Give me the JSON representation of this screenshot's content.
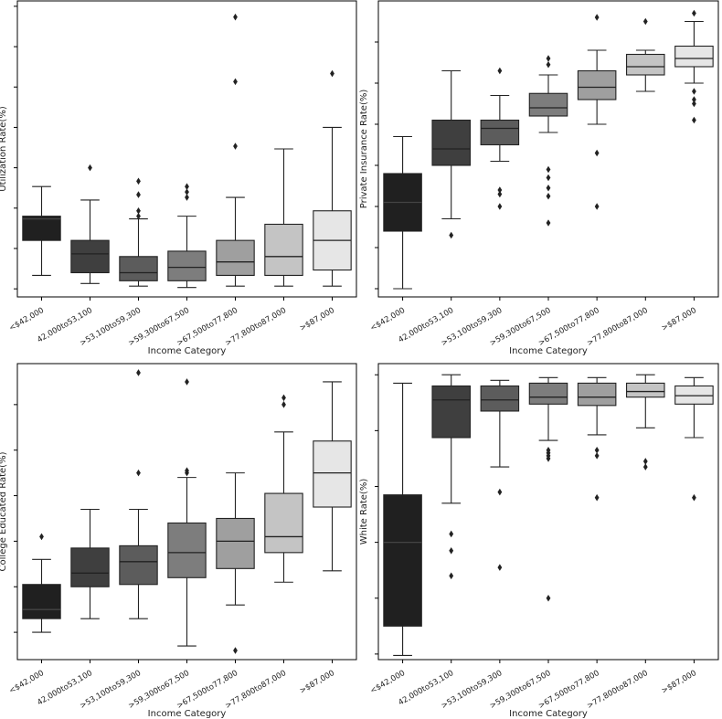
{
  "chart_data": [
    {
      "type": "box",
      "ylabel": "Utilization Rate(%)",
      "xlabel": "Income Category",
      "categories": [
        "<$42,000",
        "42,000to53,100",
        ">53,100to59,300",
        ">59,300to67,500",
        ">67,500to77,800",
        ">77,800to87,000",
        ">$87,000"
      ],
      "ylim": [
        -0.3,
        10.7
      ],
      "yticks": [
        0,
        1.5,
        3,
        4.5,
        6,
        7.5,
        9,
        10.5
      ],
      "tick_labels_shown": false,
      "boxes": [
        {
          "q1": 1.8,
          "median": 2.6,
          "q3": 2.7,
          "lo": 0.5,
          "hi": 3.8,
          "outliers": []
        },
        {
          "q1": 0.6,
          "median": 1.3,
          "q3": 1.8,
          "lo": 0.2,
          "hi": 3.3,
          "outliers": [
            4.5
          ]
        },
        {
          "q1": 0.3,
          "median": 0.6,
          "q3": 1.2,
          "lo": 0.1,
          "hi": 2.6,
          "outliers": [
            2.7,
            2.9,
            3.5,
            4.0
          ]
        },
        {
          "q1": 0.3,
          "median": 0.8,
          "q3": 1.4,
          "lo": 0.05,
          "hi": 2.7,
          "outliers": [
            3.4,
            3.6,
            3.8
          ]
        },
        {
          "q1": 0.5,
          "median": 1.0,
          "q3": 1.8,
          "lo": 0.1,
          "hi": 3.4,
          "outliers": [
            5.3,
            7.7,
            10.1
          ]
        },
        {
          "q1": 0.5,
          "median": 1.2,
          "q3": 2.4,
          "lo": 0.1,
          "hi": 5.2,
          "outliers": []
        },
        {
          "q1": 0.7,
          "median": 1.8,
          "q3": 2.9,
          "lo": 0.1,
          "hi": 6.0,
          "outliers": [
            8.0
          ]
        }
      ]
    },
    {
      "type": "box",
      "ylabel": "Private Insurance Rate(%)",
      "xlabel": "Income Category",
      "categories": [
        "<$42,000",
        "42,000to53,100",
        ">53,100to59,300",
        ">59,300to67,500",
        ">67,500to77,800",
        ">77,800to87,000",
        ">$87,000"
      ],
      "ylim": [
        28,
        100
      ],
      "yticks": [
        30,
        40,
        50,
        60,
        70,
        80,
        90
      ],
      "tick_labels_shown": false,
      "boxes": [
        {
          "q1": 44,
          "median": 51,
          "q3": 58,
          "lo": 30,
          "hi": 67,
          "outliers": []
        },
        {
          "q1": 60,
          "median": 64,
          "q3": 71,
          "lo": 47,
          "hi": 83,
          "outliers": [
            43
          ]
        },
        {
          "q1": 65,
          "median": 69,
          "q3": 71,
          "lo": 61,
          "hi": 77,
          "outliers": [
            50,
            53,
            54,
            83
          ]
        },
        {
          "q1": 72,
          "median": 74,
          "q3": 77.5,
          "lo": 68,
          "hi": 82,
          "outliers": [
            46,
            52.5,
            54.5,
            57,
            59,
            84.5,
            86
          ]
        },
        {
          "q1": 76,
          "median": 79,
          "q3": 83,
          "lo": 70,
          "hi": 88,
          "outliers": [
            50,
            63,
            96
          ]
        },
        {
          "q1": 82,
          "median": 84,
          "q3": 87,
          "lo": 78,
          "hi": 88,
          "outliers": [
            95
          ]
        },
        {
          "q1": 84,
          "median": 86,
          "q3": 89,
          "lo": 80,
          "hi": 95,
          "outliers": [
            71,
            75,
            76,
            78,
            97
          ]
        }
      ]
    },
    {
      "type": "box",
      "ylabel": "College Educated Rate(%)",
      "xlabel": "Income Category",
      "categories": [
        "<$42,000",
        "42,000to53,100",
        ">53,100to59,300",
        ">59,300to67,500",
        ">67,500to77,800",
        ">77,800to87,000",
        ">$87,000"
      ],
      "ylim": [
        4,
        69
      ],
      "yticks": [
        10,
        20,
        30,
        40,
        50,
        60
      ],
      "tick_labels_shown": false,
      "boxes": [
        {
          "q1": 13,
          "median": 15,
          "q3": 20.5,
          "lo": 10,
          "hi": 26,
          "outliers": [
            31
          ]
        },
        {
          "q1": 20,
          "median": 23,
          "q3": 28.5,
          "lo": 13,
          "hi": 37,
          "outliers": []
        },
        {
          "q1": 20.5,
          "median": 25.5,
          "q3": 29,
          "lo": 13,
          "hi": 37,
          "outliers": [
            45,
            67
          ]
        },
        {
          "q1": 22,
          "median": 27.5,
          "q3": 34,
          "lo": 7,
          "hi": 44,
          "outliers": [
            45,
            45.5,
            65
          ]
        },
        {
          "q1": 24,
          "median": 30,
          "q3": 35,
          "lo": 16,
          "hi": 45,
          "outliers": [
            6
          ]
        },
        {
          "q1": 27.5,
          "median": 31,
          "q3": 40.5,
          "lo": 21,
          "hi": 54,
          "outliers": [
            60,
            61.5
          ]
        },
        {
          "q1": 37.5,
          "median": 45,
          "q3": 52,
          "lo": 23.5,
          "hi": 65,
          "outliers": []
        }
      ]
    },
    {
      "type": "box",
      "ylabel": "White Rate(%)",
      "xlabel": "Income Category",
      "categories": [
        "<$42,000",
        "42,000to53,100",
        ">53,100to59,300",
        ">59,300to67,500",
        ">67,500to77,800",
        ">77,800to87,000",
        ">$87,000"
      ],
      "ylim": [
        -2,
        104
      ],
      "yticks": [
        0,
        20,
        40,
        60,
        80,
        100
      ],
      "tick_labels_shown": false,
      "boxes": [
        {
          "q1": 10,
          "median": 40,
          "q3": 57,
          "lo": -0.5,
          "hi": 97,
          "outliers": []
        },
        {
          "q1": 77.5,
          "median": 91,
          "q3": 96,
          "lo": 54,
          "hi": 100,
          "outliers": [
            28,
            37,
            43
          ]
        },
        {
          "q1": 87,
          "median": 91,
          "q3": 96,
          "lo": 67,
          "hi": 98,
          "outliers": [
            31,
            58
          ]
        },
        {
          "q1": 89.5,
          "median": 92,
          "q3": 97,
          "lo": 76.5,
          "hi": 99,
          "outliers": [
            20,
            70,
            71,
            72,
            73
          ]
        },
        {
          "q1": 89,
          "median": 92,
          "q3": 97,
          "lo": 78.5,
          "hi": 99,
          "outliers": [
            56,
            71,
            73
          ]
        },
        {
          "q1": 92,
          "median": 94,
          "q3": 97,
          "lo": 81,
          "hi": 100,
          "outliers": [
            67,
            69
          ]
        },
        {
          "q1": 89.5,
          "median": 92.5,
          "q3": 96,
          "lo": 77.5,
          "hi": 99,
          "outliers": [
            56
          ]
        }
      ]
    }
  ],
  "colors": {
    "boxes": [
      "#202020",
      "#3f3f3f",
      "#5c5c5c",
      "#7d7d7d",
      "#9f9f9f",
      "#c4c4c4",
      "#e6e6e6"
    ],
    "line": "#222222",
    "frame": "#000000"
  }
}
